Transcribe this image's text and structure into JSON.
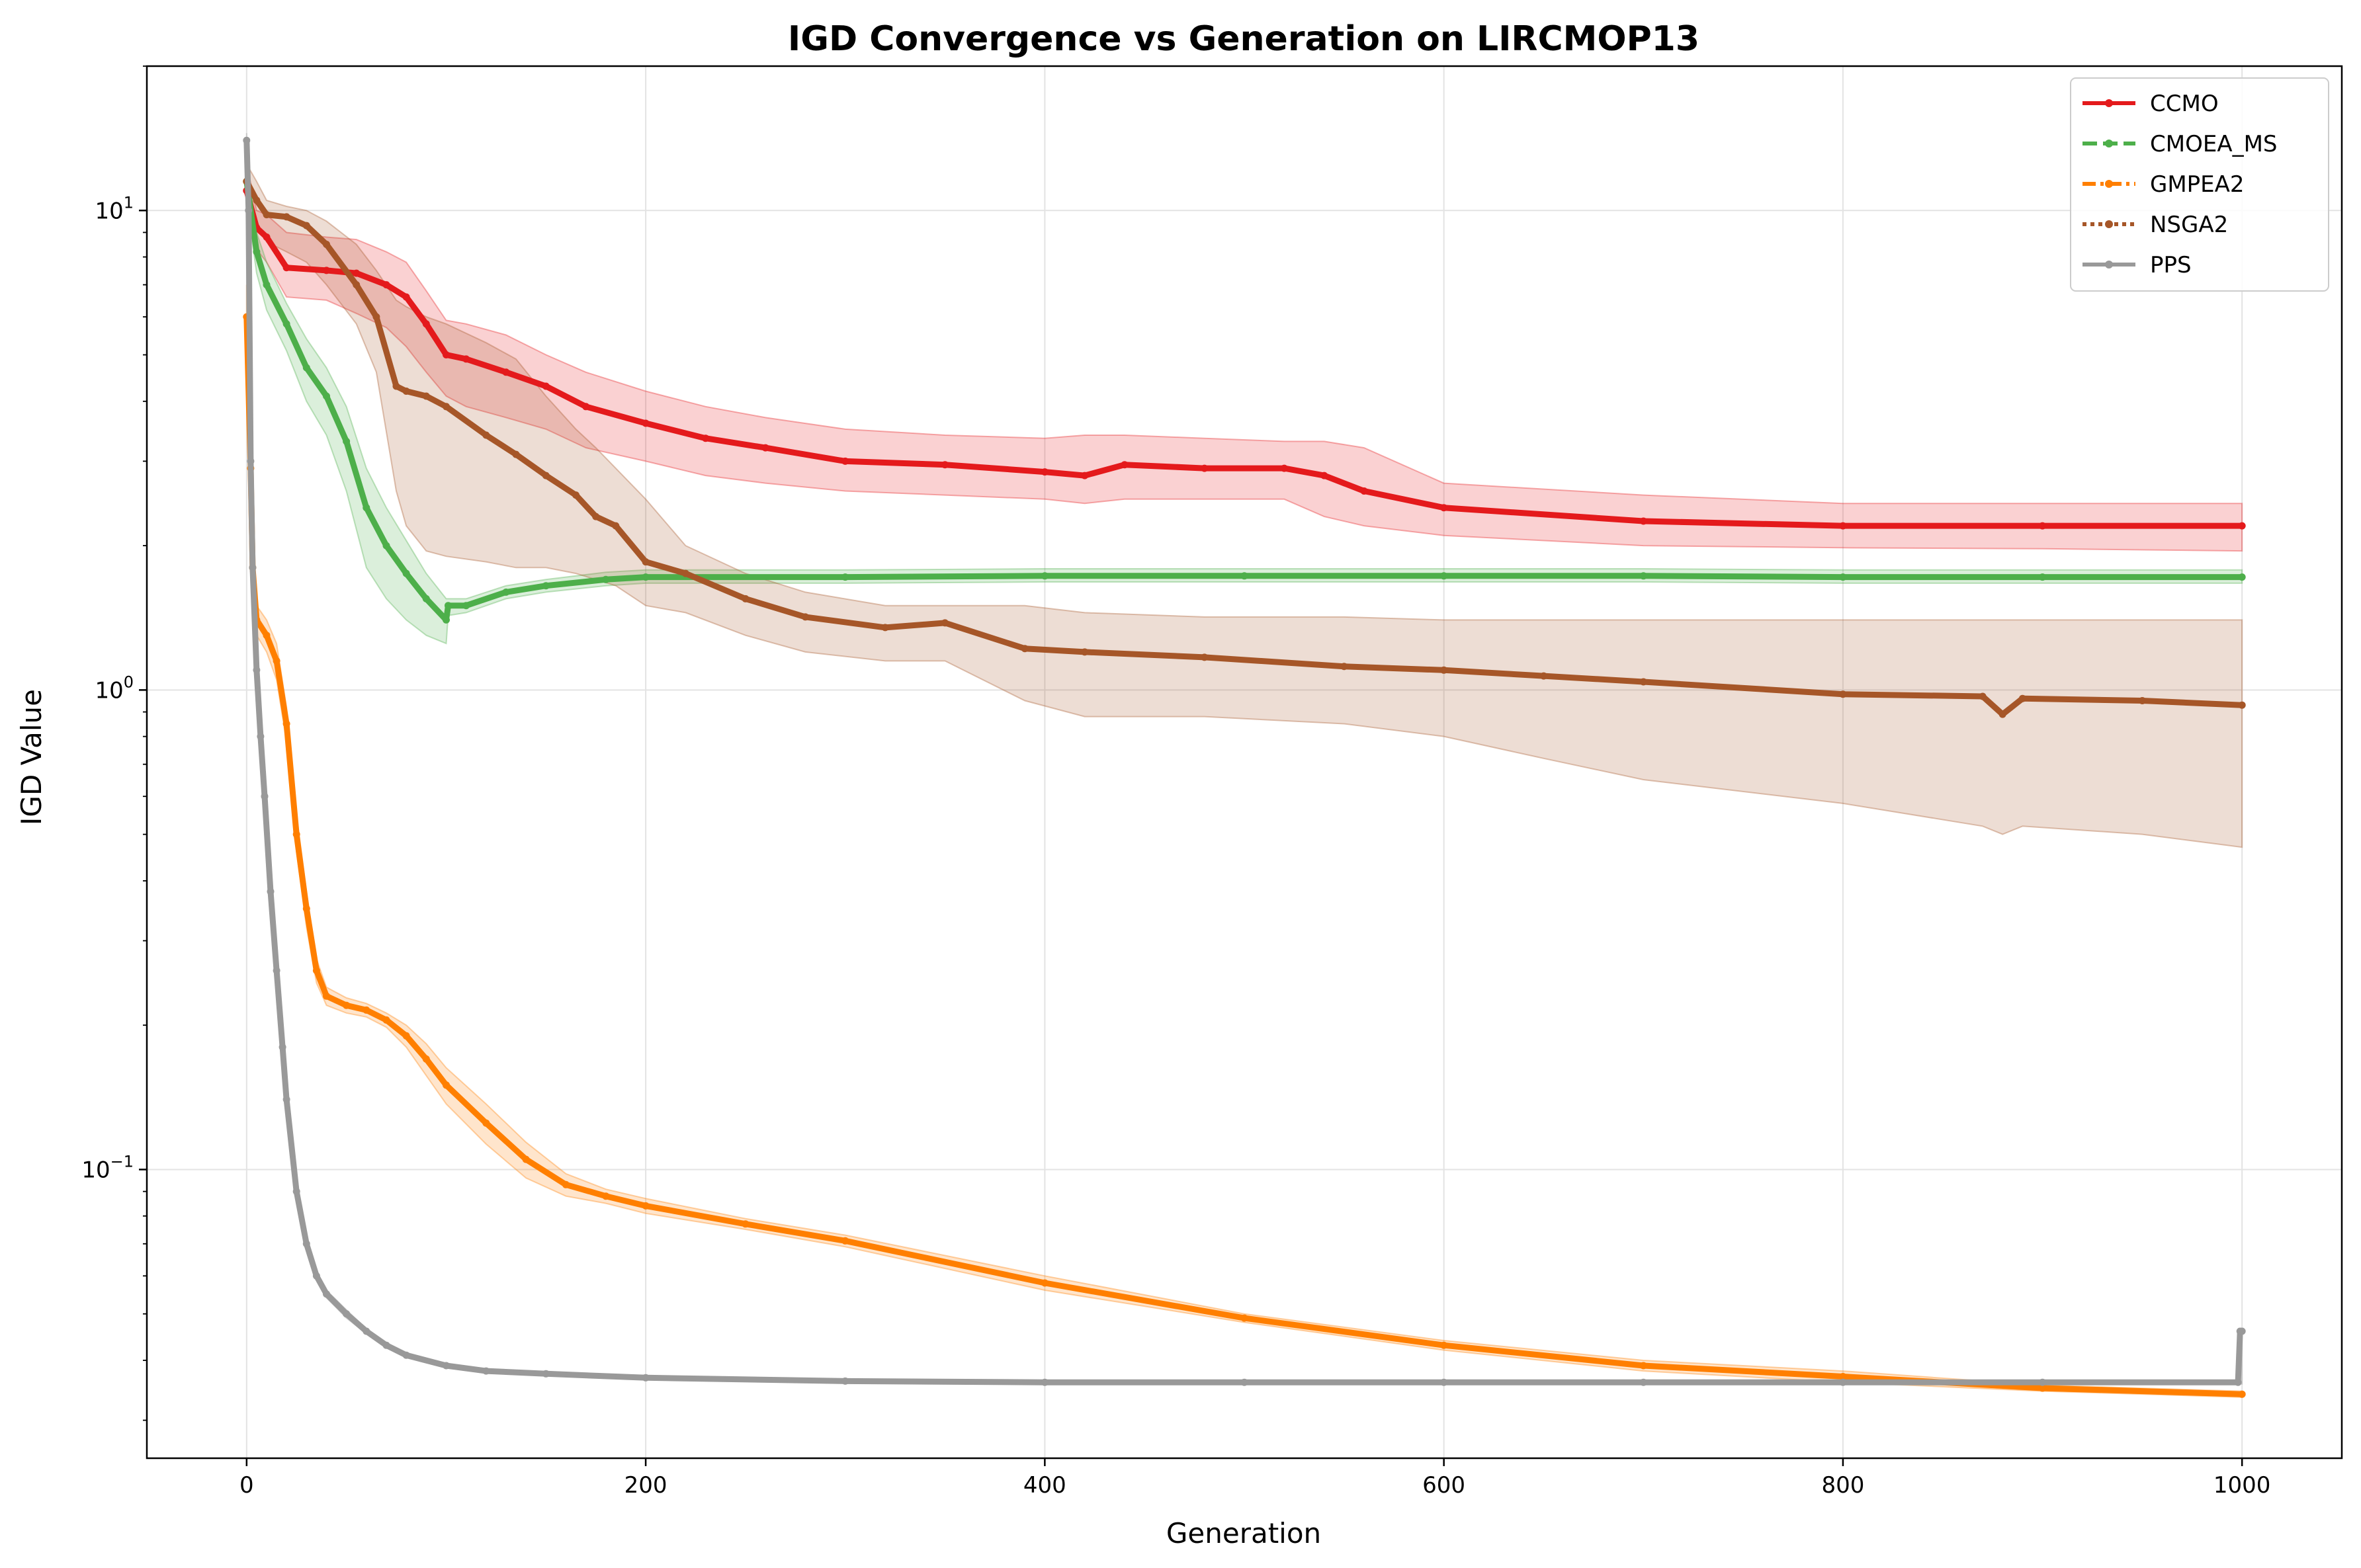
{
  "chart_data": {
    "type": "line",
    "title": "IGD Convergence vs Generation on LIRCMOP13",
    "xlabel": "Generation",
    "ylabel": "IGD Value",
    "xlim": [
      -50,
      1050
    ],
    "ylim": [
      0.025,
      20
    ],
    "yscale": "log",
    "grid": true,
    "legend_position": "top-right",
    "x_ticks": [
      {
        "value": 0,
        "label": "0"
      },
      {
        "value": 200,
        "label": "200"
      },
      {
        "value": 400,
        "label": "400"
      },
      {
        "value": 600,
        "label": "600"
      },
      {
        "value": 800,
        "label": "800"
      },
      {
        "value": 1000,
        "label": "1000"
      }
    ],
    "y_ticks": [
      {
        "value": 0.1,
        "base": "10",
        "exp": "−1"
      },
      {
        "value": 1,
        "base": "10",
        "exp": "0"
      },
      {
        "value": 10,
        "base": "10",
        "exp": "1"
      }
    ],
    "series": [
      {
        "name": "CCMO",
        "color": "#e41a1c",
        "linestyle": "solid",
        "x": [
          0,
          5,
          10,
          20,
          40,
          55,
          70,
          80,
          90,
          100,
          110,
          130,
          150,
          170,
          200,
          230,
          260,
          300,
          350,
          400,
          420,
          440,
          480,
          520,
          540,
          560,
          600,
          700,
          800,
          900,
          1000
        ],
        "y": [
          11.0,
          9.2,
          8.8,
          7.6,
          7.5,
          7.4,
          7.0,
          6.6,
          5.8,
          5.0,
          4.9,
          4.6,
          4.3,
          3.9,
          3.6,
          3.35,
          3.2,
          3.0,
          2.95,
          2.85,
          2.8,
          2.95,
          2.9,
          2.9,
          2.8,
          2.6,
          2.4,
          2.25,
          2.2,
          2.2,
          2.2
        ],
        "lower": [
          9.5,
          8.3,
          7.8,
          6.6,
          6.5,
          6.1,
          5.7,
          5.2,
          4.6,
          4.1,
          3.9,
          3.7,
          3.5,
          3.2,
          3.0,
          2.8,
          2.7,
          2.6,
          2.55,
          2.5,
          2.45,
          2.5,
          2.5,
          2.5,
          2.3,
          2.2,
          2.1,
          2.0,
          1.98,
          1.97,
          1.95
        ],
        "upper": [
          12.5,
          10.0,
          9.8,
          9.0,
          8.8,
          8.7,
          8.2,
          7.8,
          6.8,
          5.9,
          5.8,
          5.5,
          5.0,
          4.6,
          4.2,
          3.9,
          3.7,
          3.5,
          3.4,
          3.35,
          3.4,
          3.4,
          3.35,
          3.3,
          3.3,
          3.2,
          2.7,
          2.55,
          2.45,
          2.45,
          2.45
        ]
      },
      {
        "name": "CMOEA_MS",
        "color": "#4daf4a",
        "linestyle": "dashed",
        "x": [
          0,
          5,
          10,
          20,
          30,
          40,
          50,
          60,
          70,
          80,
          90,
          100,
          101,
          110,
          130,
          150,
          180,
          200,
          300,
          400,
          500,
          600,
          700,
          800,
          900,
          1000
        ],
        "y": [
          11.5,
          8.2,
          7.0,
          5.8,
          4.7,
          4.1,
          3.3,
          2.4,
          2.0,
          1.75,
          1.55,
          1.4,
          1.5,
          1.5,
          1.6,
          1.65,
          1.7,
          1.72,
          1.72,
          1.73,
          1.73,
          1.73,
          1.73,
          1.72,
          1.72,
          1.72
        ],
        "lower": [
          10.5,
          7.4,
          6.2,
          5.1,
          4.0,
          3.4,
          2.6,
          1.8,
          1.55,
          1.4,
          1.3,
          1.25,
          1.43,
          1.45,
          1.55,
          1.6,
          1.65,
          1.67,
          1.67,
          1.68,
          1.68,
          1.68,
          1.68,
          1.67,
          1.67,
          1.67
        ],
        "upper": [
          12.5,
          9.0,
          7.8,
          6.4,
          5.4,
          4.7,
          3.9,
          2.9,
          2.4,
          2.05,
          1.75,
          1.55,
          1.55,
          1.55,
          1.65,
          1.7,
          1.76,
          1.78,
          1.78,
          1.79,
          1.79,
          1.79,
          1.79,
          1.78,
          1.78,
          1.78
        ]
      },
      {
        "name": "GMPEA2",
        "color": "#ff7f00",
        "linestyle": "dashdot",
        "x": [
          0,
          2,
          3,
          5,
          10,
          15,
          20,
          25,
          30,
          35,
          40,
          50,
          60,
          70,
          80,
          90,
          100,
          120,
          140,
          160,
          180,
          200,
          250,
          300,
          400,
          500,
          600,
          700,
          800,
          900,
          1000
        ],
        "y": [
          6.0,
          2.9,
          1.8,
          1.4,
          1.3,
          1.15,
          0.85,
          0.5,
          0.35,
          0.26,
          0.23,
          0.22,
          0.215,
          0.205,
          0.19,
          0.17,
          0.15,
          0.125,
          0.105,
          0.093,
          0.088,
          0.084,
          0.077,
          0.071,
          0.058,
          0.049,
          0.043,
          0.039,
          0.037,
          0.035,
          0.034
        ],
        "lower": [
          5.0,
          2.4,
          1.6,
          1.3,
          1.2,
          1.05,
          0.78,
          0.46,
          0.32,
          0.245,
          0.22,
          0.212,
          0.208,
          0.198,
          0.18,
          0.157,
          0.137,
          0.113,
          0.096,
          0.088,
          0.085,
          0.081,
          0.075,
          0.069,
          0.056,
          0.048,
          0.042,
          0.038,
          0.036,
          0.0345,
          0.0335
        ],
        "upper": [
          7.0,
          3.4,
          2.0,
          1.5,
          1.4,
          1.25,
          0.92,
          0.55,
          0.38,
          0.275,
          0.24,
          0.228,
          0.222,
          0.212,
          0.2,
          0.183,
          0.163,
          0.137,
          0.114,
          0.098,
          0.091,
          0.087,
          0.079,
          0.073,
          0.06,
          0.05,
          0.044,
          0.04,
          0.038,
          0.0355,
          0.0345
        ]
      },
      {
        "name": "NSGA2",
        "color": "#a65628",
        "linestyle": "dotted",
        "x": [
          0,
          5,
          10,
          20,
          30,
          40,
          55,
          65,
          75,
          80,
          90,
          100,
          120,
          135,
          150,
          165,
          175,
          185,
          200,
          220,
          250,
          280,
          320,
          350,
          390,
          420,
          480,
          550,
          600,
          650,
          700,
          800,
          870,
          880,
          890,
          950,
          1000
        ],
        "y": [
          11.5,
          10.5,
          9.8,
          9.7,
          9.3,
          8.5,
          7.0,
          6.0,
          4.3,
          4.2,
          4.1,
          3.9,
          3.4,
          3.1,
          2.8,
          2.55,
          2.3,
          2.2,
          1.85,
          1.75,
          1.55,
          1.42,
          1.35,
          1.38,
          1.22,
          1.2,
          1.17,
          1.12,
          1.1,
          1.07,
          1.04,
          0.98,
          0.97,
          0.89,
          0.96,
          0.95,
          0.93
        ],
        "lower": [
          10.5,
          9.5,
          8.6,
          8.2,
          7.8,
          7.0,
          5.8,
          4.6,
          2.6,
          2.2,
          1.95,
          1.9,
          1.85,
          1.8,
          1.8,
          1.75,
          1.7,
          1.65,
          1.5,
          1.45,
          1.3,
          1.2,
          1.15,
          1.15,
          0.95,
          0.88,
          0.88,
          0.85,
          0.8,
          0.72,
          0.65,
          0.58,
          0.52,
          0.5,
          0.52,
          0.5,
          0.47
        ],
        "upper": [
          12.5,
          11.5,
          10.5,
          10.2,
          10.0,
          9.5,
          8.5,
          7.5,
          6.5,
          6.3,
          6.0,
          5.8,
          5.3,
          4.9,
          4.1,
          3.5,
          3.2,
          2.9,
          2.5,
          2.0,
          1.75,
          1.6,
          1.5,
          1.5,
          1.5,
          1.45,
          1.42,
          1.42,
          1.4,
          1.4,
          1.4,
          1.4,
          1.4,
          1.4,
          1.4,
          1.4,
          1.4
        ]
      },
      {
        "name": "PPS",
        "color": "#999999",
        "linestyle": "solid",
        "x": [
          0,
          1,
          2,
          3,
          5,
          7,
          9,
          12,
          15,
          18,
          20,
          25,
          30,
          35,
          40,
          50,
          60,
          70,
          80,
          100,
          120,
          150,
          200,
          300,
          400,
          500,
          600,
          700,
          800,
          900,
          998,
          999,
          1000
        ],
        "y": [
          14.0,
          10.0,
          3.0,
          1.8,
          1.1,
          0.8,
          0.6,
          0.38,
          0.26,
          0.18,
          0.14,
          0.09,
          0.07,
          0.06,
          0.055,
          0.05,
          0.046,
          0.043,
          0.041,
          0.039,
          0.038,
          0.0375,
          0.0368,
          0.0362,
          0.036,
          0.036,
          0.036,
          0.036,
          0.036,
          0.036,
          0.036,
          0.046,
          0.046
        ],
        "lower": [
          13.5,
          9.6,
          2.85,
          1.72,
          1.05,
          0.77,
          0.58,
          0.365,
          0.25,
          0.174,
          0.136,
          0.088,
          0.069,
          0.059,
          0.054,
          0.049,
          0.0455,
          0.0425,
          0.0405,
          0.0386,
          0.0376,
          0.0372,
          0.0365,
          0.0359,
          0.0357,
          0.0357,
          0.0357,
          0.0357,
          0.0357,
          0.0357,
          0.0357,
          0.0357,
          0.0357
        ],
        "upper": [
          14.5,
          10.4,
          3.15,
          1.88,
          1.15,
          0.83,
          0.62,
          0.395,
          0.27,
          0.186,
          0.144,
          0.092,
          0.071,
          0.061,
          0.056,
          0.051,
          0.0465,
          0.0435,
          0.0415,
          0.0394,
          0.0384,
          0.0378,
          0.0371,
          0.0365,
          0.0363,
          0.0363,
          0.0363,
          0.0363,
          0.0363,
          0.0363,
          0.0363,
          0.046,
          0.046
        ]
      }
    ]
  }
}
